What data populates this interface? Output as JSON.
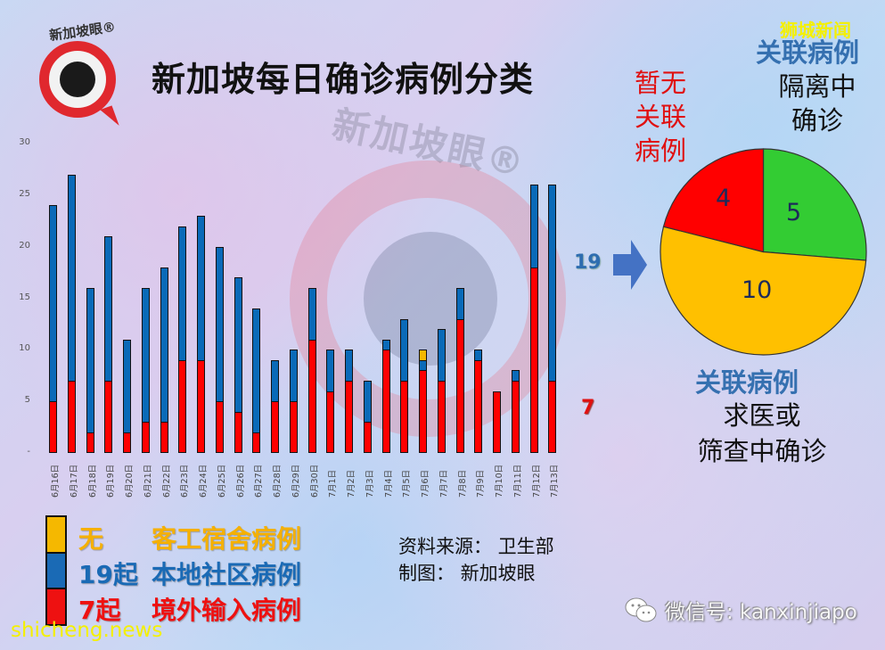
{
  "header": {
    "logo_text": "新加坡眼®",
    "title": "新加坡每日确诊病例分类",
    "watermark": "新加坡眼®",
    "corner_brand": "狮城新闻"
  },
  "chart_data": [
    {
      "type": "bar",
      "stacked": true,
      "title": "新加坡每日确诊病例分类",
      "xlabel": "",
      "ylabel": "",
      "ylim": [
        0,
        30
      ],
      "yticks": [
        "-",
        "5",
        "10",
        "15",
        "20",
        "25",
        "30"
      ],
      "grid": false,
      "legend_position": "bottom-left",
      "categories": [
        "6月16日",
        "6月17日",
        "6月18日",
        "6月19日",
        "6月20日",
        "6月21日",
        "6月22日",
        "6月23日",
        "6月24日",
        "6月25日",
        "6月26日",
        "6月27日",
        "6月28日",
        "6月29日",
        "6月30日",
        "7月1日",
        "7月2日",
        "7月3日",
        "7月4日",
        "7月5日",
        "7月6日",
        "7月7日",
        "7月8日",
        "7月9日",
        "7月10日",
        "7月11日",
        "7月12日",
        "7月13日"
      ],
      "series": [
        {
          "name": "境外输入病例",
          "color": "#ff0000",
          "values": [
            5,
            7,
            2,
            7,
            2,
            3,
            3,
            9,
            9,
            5,
            4,
            2,
            5,
            5,
            11,
            6,
            7,
            3,
            10,
            7,
            8,
            7,
            13,
            9,
            6,
            7,
            18,
            7
          ]
        },
        {
          "name": "本地社区病例",
          "color": "#0a6ab8",
          "values": [
            19,
            20,
            14,
            14,
            9,
            13,
            15,
            13,
            14,
            15,
            13,
            12,
            4,
            5,
            5,
            4,
            3,
            4,
            1,
            6,
            1,
            5,
            3,
            1,
            0,
            1,
            8,
            19
          ]
        },
        {
          "name": "客工宿舍病例",
          "color": "#f5b800",
          "values": [
            0,
            0,
            0,
            0,
            0,
            0,
            0,
            0,
            0,
            0,
            0,
            0,
            0,
            0,
            0,
            0,
            0,
            0,
            0,
            0,
            1,
            0,
            0,
            0,
            0,
            0,
            0,
            0
          ]
        }
      ]
    },
    {
      "type": "pie",
      "title": "7月13日 本地社区病例 19",
      "categories": [
        "暂无关联病例",
        "关联病例 隔离中确诊",
        "关联病例 求医或筛查中确诊"
      ],
      "values": [
        4,
        5,
        10
      ],
      "colors": [
        "#ff0000",
        "#33cc33",
        "#ffc000"
      ]
    }
  ],
  "annotations": {
    "community_total": "19",
    "imported_total": "7",
    "pie_labels": {
      "unlinked": [
        "暂无",
        "关联",
        "病例"
      ],
      "linked_top": "关联病例",
      "isolation": [
        "隔离中",
        "确诊"
      ],
      "linked_bottom": "关联病例",
      "screening": [
        "求医或",
        "筛查中确诊"
      ]
    },
    "pie_values": {
      "red": "4",
      "green": "5",
      "yellow": "10"
    }
  },
  "legend": [
    {
      "count": "无",
      "label": "客工宿舍病例",
      "color": "#f5b800"
    },
    {
      "count": "19起",
      "label": "本地社区病例",
      "color": "#1a6ab5"
    },
    {
      "count": "7起",
      "label": "境外输入病例",
      "color": "#ee1111"
    }
  ],
  "footer": {
    "source": "资料来源：  卫生部",
    "made_by": "制图：  新加坡眼",
    "wechat": "微信号: kanxinjiapo",
    "site": "shicheng.news"
  }
}
